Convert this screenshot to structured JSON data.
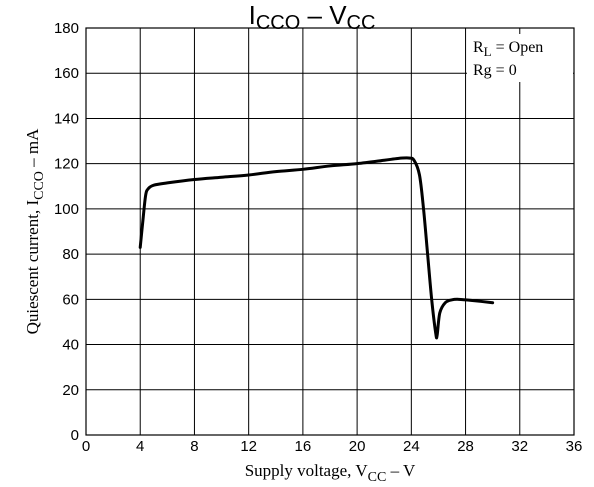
{
  "chart_data": {
    "type": "line",
    "title": {
      "main1": "I",
      "sub1": "CCO",
      "sep": " – ",
      "main2": "V",
      "sub2": "CC"
    },
    "xlabel": {
      "pre": "Supply voltage, V",
      "sub": "CC",
      "post": " – V"
    },
    "ylabel": {
      "pre": "Quiescent current, I",
      "sub": "CCO",
      "post": " – mA"
    },
    "xlim": [
      0,
      36
    ],
    "ylim": [
      0,
      180
    ],
    "x_ticks": [
      0,
      4,
      8,
      12,
      16,
      20,
      24,
      28,
      32,
      36
    ],
    "y_ticks": [
      0,
      20,
      40,
      60,
      80,
      100,
      120,
      140,
      160,
      180
    ],
    "grid": true,
    "legend_placement": "top-right",
    "annotations": [
      {
        "main": "R",
        "sub": "L",
        "rest": " = Open"
      },
      {
        "main": "Rg = 0"
      }
    ],
    "series": [
      {
        "color": "#000000",
        "x": [
          4.0,
          4.2,
          4.4,
          4.6,
          5.0,
          6.0,
          8.0,
          10.0,
          12.0,
          14.0,
          16.0,
          18.0,
          20.0,
          22.0,
          23.0,
          23.8,
          24.2,
          24.6,
          24.9,
          25.2,
          25.5,
          25.8,
          25.9,
          26.1,
          26.5,
          27.0,
          27.5,
          28.5,
          30.0
        ],
        "y": [
          83,
          95,
          106,
          109,
          110.5,
          111.5,
          113,
          114,
          115,
          116.5,
          117.5,
          119,
          120,
          121.5,
          122.3,
          122.5,
          121.5,
          115,
          100,
          80,
          60,
          45,
          44,
          54,
          58.5,
          59.8,
          60,
          59.5,
          58.5
        ]
      }
    ]
  }
}
